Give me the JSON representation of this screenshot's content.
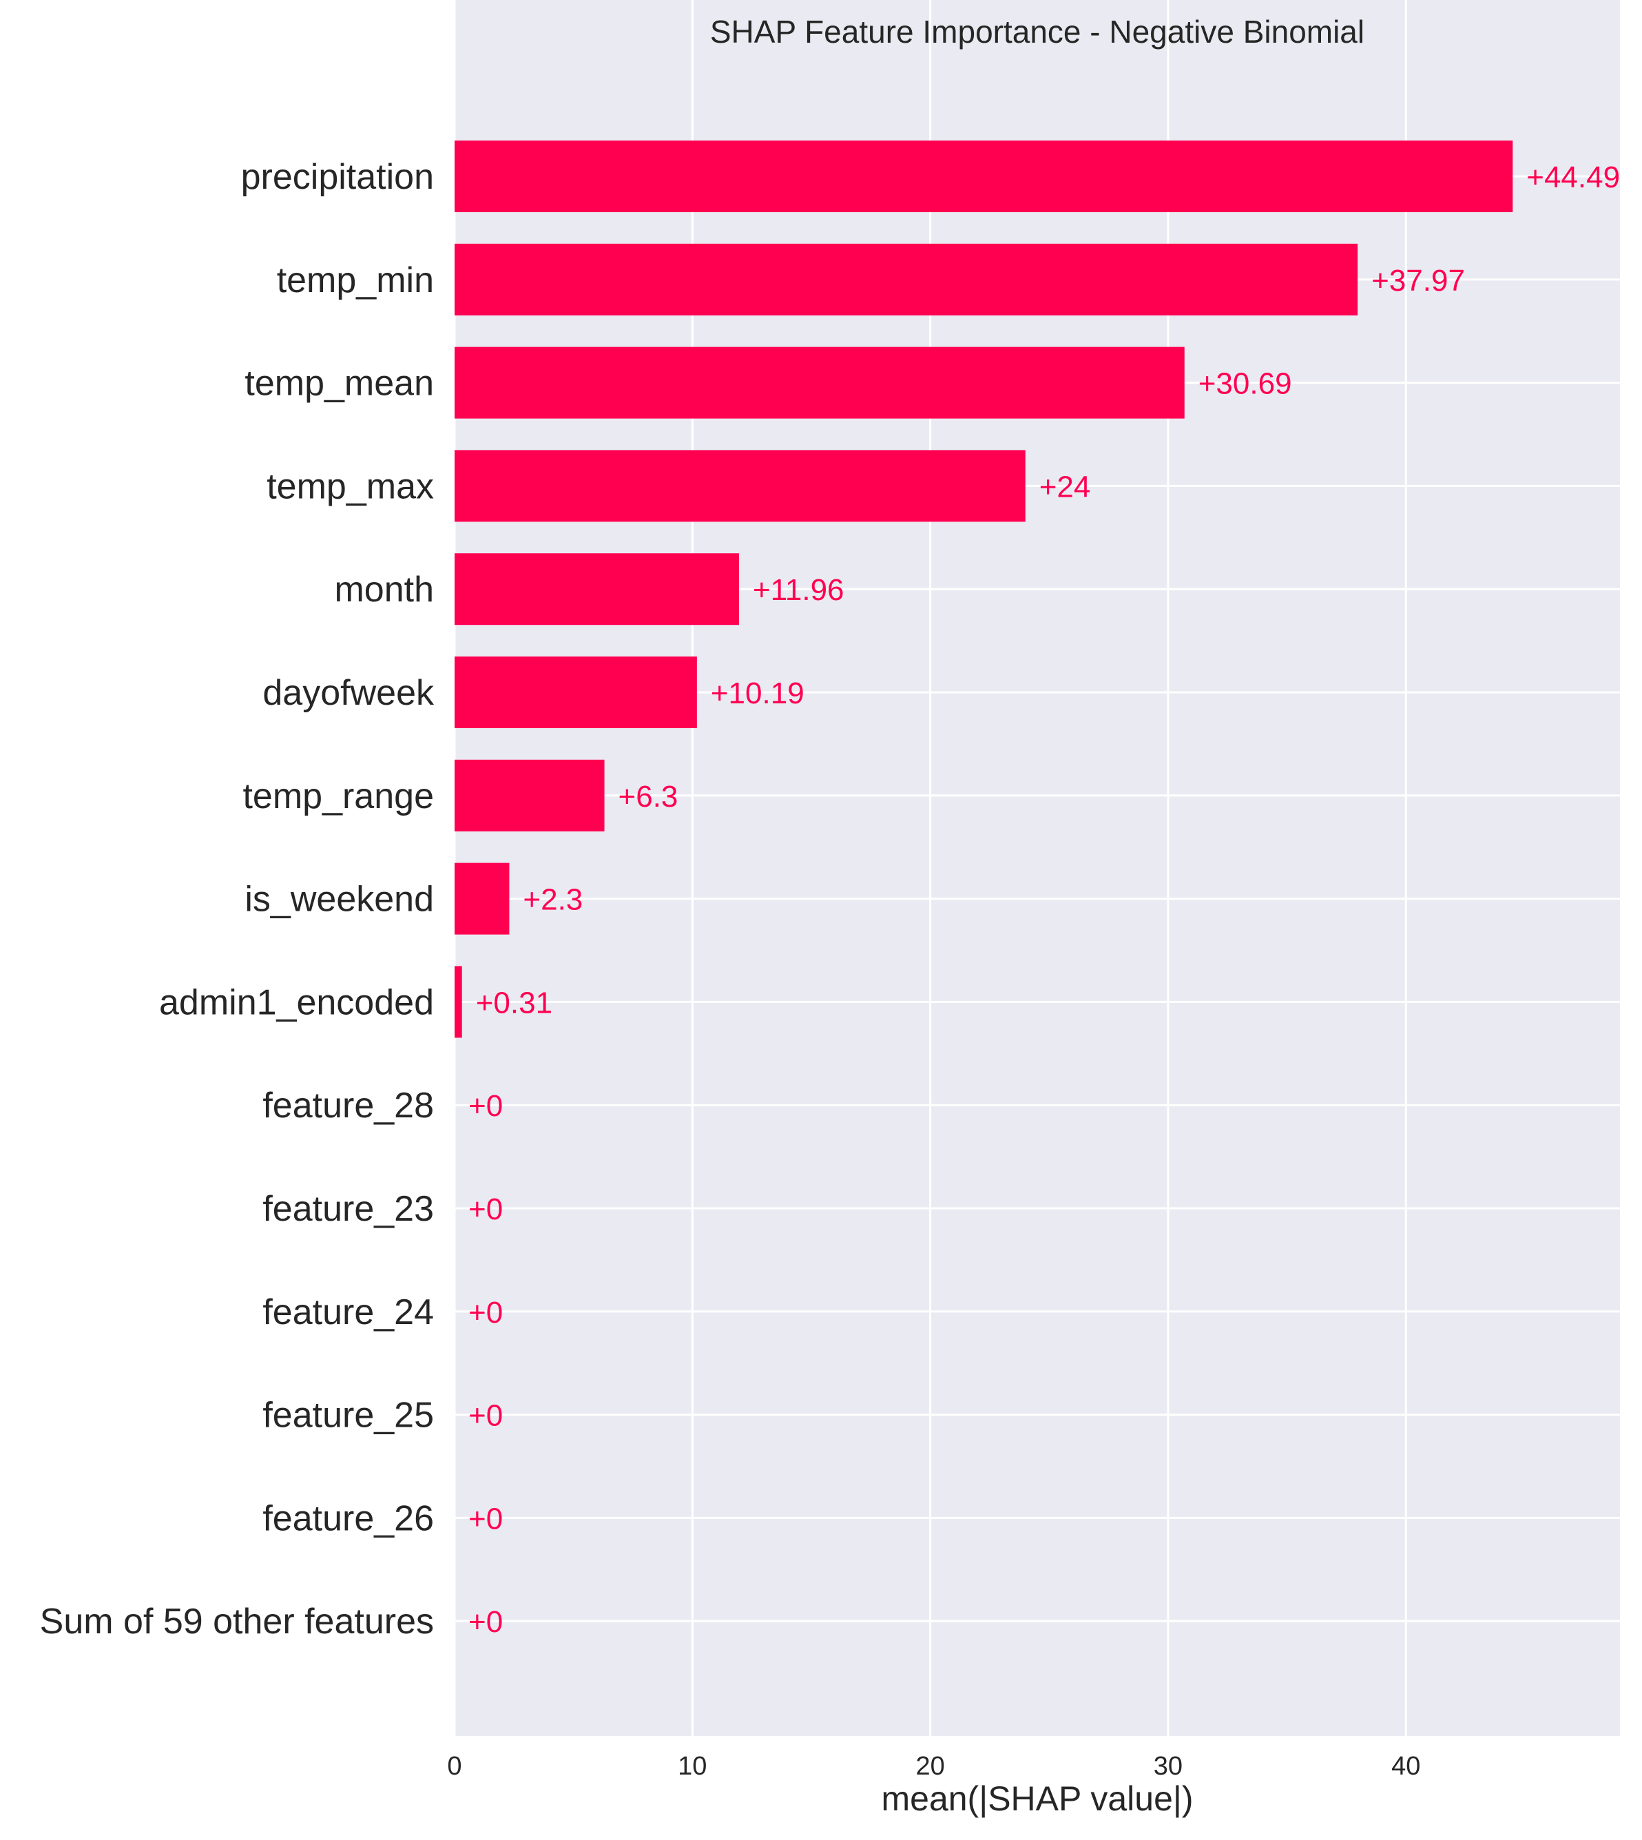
{
  "chart_data": {
    "type": "bar",
    "orientation": "horizontal",
    "title": "SHAP Feature Importance - Negative Binomial",
    "xlabel": "mean(|SHAP value|)",
    "ylabel": "",
    "xlim": [
      0,
      49
    ],
    "xticks": [
      0,
      10,
      20,
      30,
      40
    ],
    "grid": true,
    "legend": "none",
    "colors": {
      "bar": "#ff0051",
      "label": "#ff0051",
      "plot_background": "#eaeaf2",
      "grid": "#ffffff",
      "text": "#262626"
    },
    "categories": [
      "precipitation",
      "temp_min",
      "temp_mean",
      "temp_max",
      "month",
      "dayofweek",
      "temp_range",
      "is_weekend",
      "admin1_encoded",
      "feature_28",
      "feature_23",
      "feature_24",
      "feature_25",
      "feature_26",
      "Sum of 59 other features"
    ],
    "values": [
      44.49,
      37.97,
      30.69,
      24,
      11.96,
      10.19,
      6.3,
      2.3,
      0.31,
      0,
      0,
      0,
      0,
      0,
      0
    ],
    "value_labels": [
      "+44.49",
      "+37.97",
      "+30.69",
      "+24",
      "+11.96",
      "+10.19",
      "+6.3",
      "+2.3",
      "+0.31",
      "+0",
      "+0",
      "+0",
      "+0",
      "+0",
      "+0"
    ]
  }
}
